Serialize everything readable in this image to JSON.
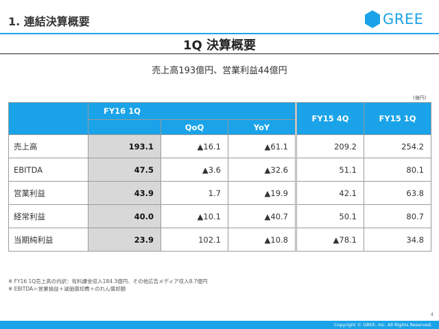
{
  "header": {
    "section_title": "1. 連結決算概要",
    "logo_text": "GREE",
    "brand_color": "#1aa3e8"
  },
  "main_title": "1Q 決算概要",
  "subtitle": "売上高193億円、営業利益44億円",
  "unit": "(億円)",
  "table": {
    "fy16_header": "FY16 1Q",
    "qoq_header": "QoQ",
    "yoy_header": "YoY",
    "fy15_4q_header": "FY15 4Q",
    "fy15_1q_header": "FY15 1Q",
    "rows": [
      {
        "label": "売上高",
        "fy16": "193.1",
        "qoq": "▲16.1",
        "yoy": "▲61.1",
        "fy15_4q": "209.2",
        "fy15_1q": "254.2"
      },
      {
        "label": "EBITDA",
        "fy16": "47.5",
        "qoq": "▲3.6",
        "yoy": "▲32.6",
        "fy15_4q": "51.1",
        "fy15_1q": "80.1"
      },
      {
        "label": "営業利益",
        "fy16": "43.9",
        "qoq": "1.7",
        "yoy": "▲19.9",
        "fy15_4q": "42.1",
        "fy15_1q": "63.8"
      },
      {
        "label": "経常利益",
        "fy16": "40.0",
        "qoq": "▲10.1",
        "yoy": "▲40.7",
        "fy15_4q": "50.1",
        "fy15_1q": "80.7"
      },
      {
        "label": "当期純利益",
        "fy16": "23.9",
        "qoq": "102.1",
        "yoy": "▲10.8",
        "fy15_4q": "▲78.1",
        "fy15_1q": "34.8"
      }
    ]
  },
  "notes": [
    "※ FY16 1Q売上高の内訳：有料課金収入184.3億円、その他広告メディア収入8.7億円",
    "※ EBITDA＝営業損益＋減価償却費＋のれん償却額"
  ],
  "footer": {
    "page_number": "4",
    "copyright": "Copyright © GREE, Inc. All Rights Reserved."
  }
}
